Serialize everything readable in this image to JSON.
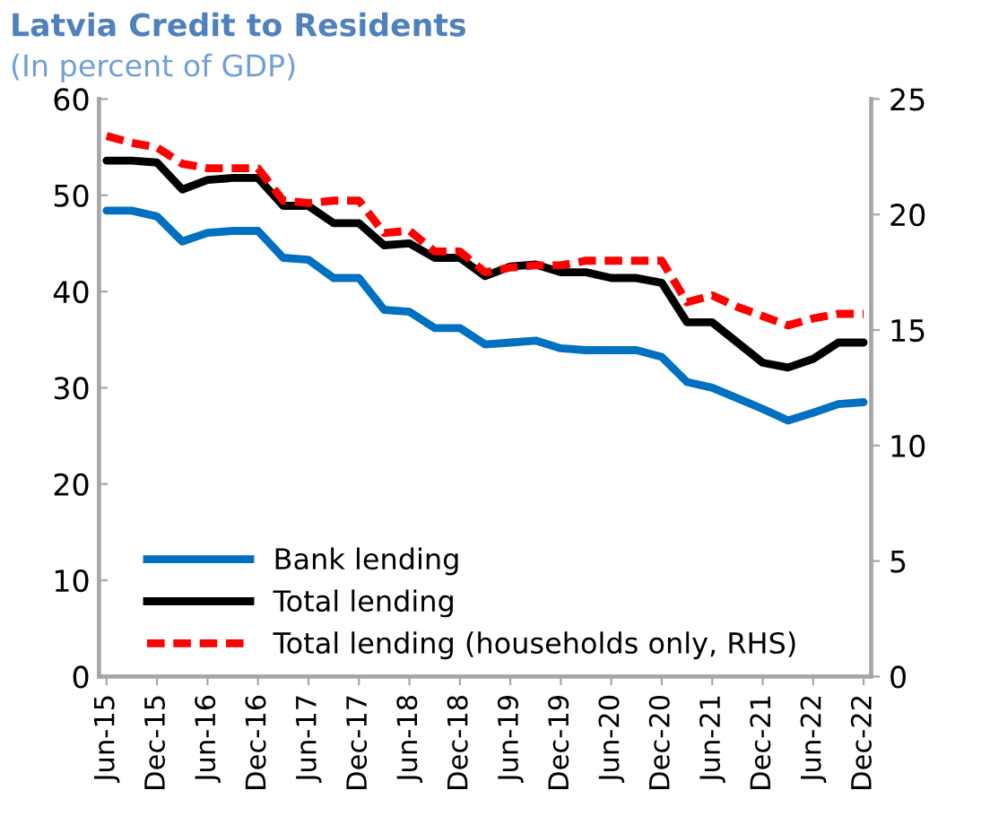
{
  "chart_data": {
    "type": "line",
    "title": "Latvia Credit to Residents",
    "subtitle": "(In percent of GDP)",
    "categories": [
      "Jun-15",
      null,
      "Dec-15",
      null,
      "Jun-16",
      null,
      "Dec-16",
      null,
      "Jun-17",
      null,
      "Dec-17",
      null,
      "Jun-18",
      null,
      "Dec-18",
      null,
      "Jun-19",
      null,
      "Dec-19",
      null,
      "Jun-20",
      null,
      "Dec-20",
      null,
      "Jun-21",
      null,
      "Dec-21",
      null,
      "Jun-22",
      null,
      "Dec-22"
    ],
    "series": [
      {
        "name": "Bank lending",
        "color": "#0070c0",
        "line_style": "solid",
        "values": [
          48.4,
          48.4,
          47.8,
          45.2,
          46.1,
          46.3,
          46.3,
          43.5,
          43.3,
          41.4,
          41.4,
          38.1,
          37.9,
          36.2,
          36.2,
          34.5,
          34.7,
          34.9,
          34.1,
          33.9,
          33.9,
          33.9,
          33.2,
          30.6,
          30.0,
          28.9,
          27.8,
          26.6,
          27.4,
          28.3,
          28.5
        ]
      },
      {
        "name": "Total lending",
        "color": "#000000",
        "line_style": "solid",
        "values": [
          53.6,
          53.6,
          53.4,
          50.6,
          51.6,
          51.8,
          51.8,
          48.9,
          48.9,
          47.1,
          47.1,
          44.8,
          45.0,
          43.5,
          43.5,
          41.6,
          42.6,
          42.8,
          42.0,
          42.0,
          41.4,
          41.4,
          40.9,
          36.8,
          36.8,
          34.7,
          32.6,
          32.1,
          33.0,
          34.7,
          34.7
        ]
      },
      {
        "name": "Total lending (households only, RHS)",
        "color": "#ff0000",
        "line_style": "dashed",
        "axis": "y2",
        "values": [
          23.4,
          23.1,
          22.9,
          22.2,
          22.0,
          22.0,
          22.0,
          20.6,
          20.5,
          20.6,
          20.6,
          19.2,
          19.3,
          18.4,
          18.4,
          17.5,
          17.7,
          17.8,
          17.8,
          18.0,
          18.0,
          18.0,
          18.0,
          16.2,
          16.5,
          16.0,
          15.6,
          15.2,
          15.5,
          15.7,
          15.7
        ]
      }
    ],
    "ylim": [
      0,
      60
    ],
    "yticks": [
      0,
      10,
      20,
      30,
      40,
      50,
      60
    ],
    "y2lim": [
      0,
      25
    ],
    "y2ticks": [
      0,
      5,
      10,
      15,
      20,
      25
    ],
    "grid": false,
    "legend": "bottom left"
  }
}
